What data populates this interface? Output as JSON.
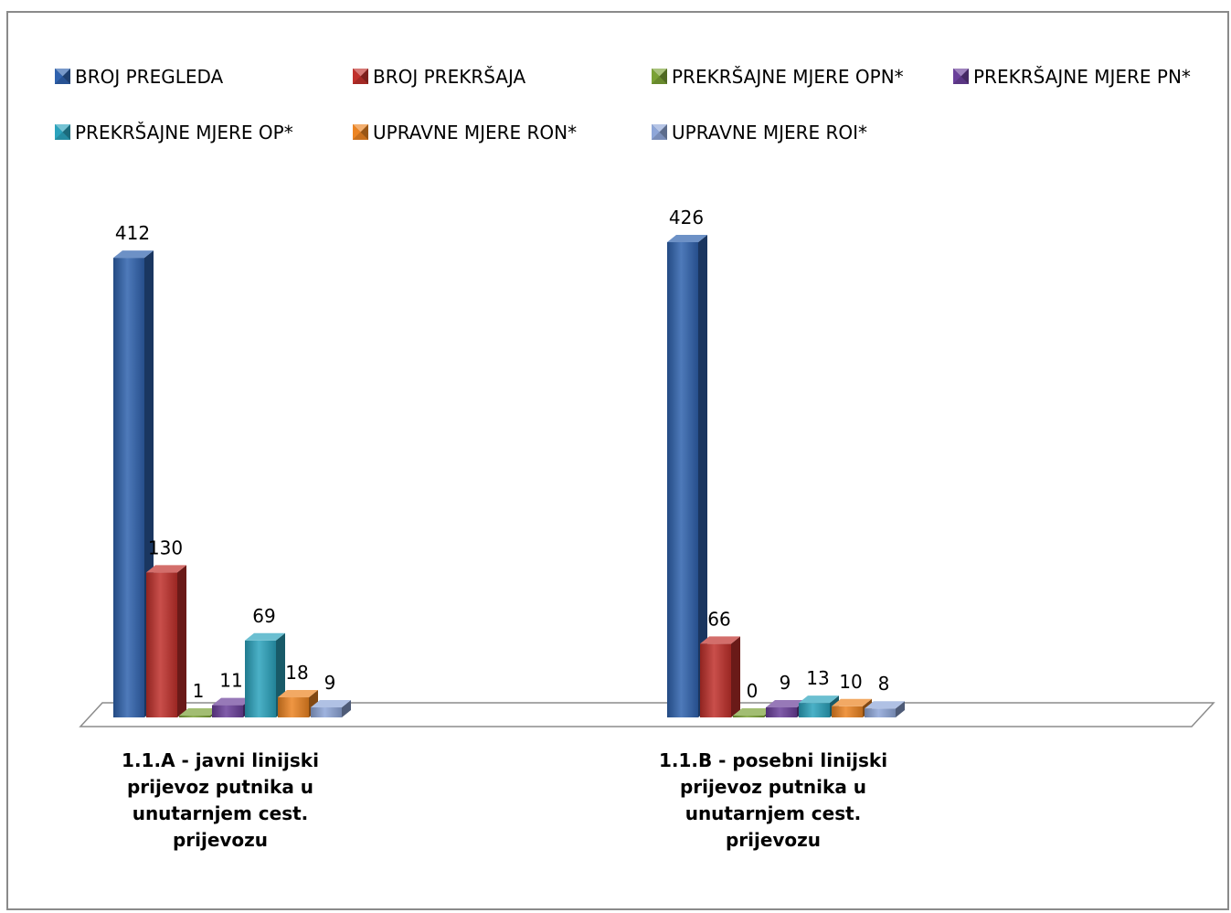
{
  "chart_data": {
    "type": "bar",
    "title": "",
    "xlabel": "",
    "ylabel": "",
    "grid": false,
    "legend_position": "top",
    "ylim": [
      0,
      426
    ],
    "categories": [
      [
        "1.1.A - javni linijski",
        "prijevoz putnika u",
        "unutarnjem cest.",
        "prijevozu"
      ],
      [
        "1.1.B - posebni linijski",
        "prijevoz putnika u",
        "unutarnjem cest.",
        "prijevozu"
      ]
    ],
    "series": [
      {
        "name": "BROJ PREGLEDA",
        "color": "#2f62ae",
        "values": [
          412,
          426
        ]
      },
      {
        "name": "BROJ PREKRŠAJA",
        "color": "#c0302b",
        "values": [
          130,
          66
        ]
      },
      {
        "name": "PREKRŠAJNE MJERE OPN*",
        "color": "#7aa135",
        "values": [
          1,
          0
        ]
      },
      {
        "name": "PREKRŠAJNE MJERE PN*",
        "color": "#6a3f9a",
        "values": [
          11,
          9
        ]
      },
      {
        "name": "PREKRŠAJNE MJERE OP*",
        "color": "#2ba3bd",
        "values": [
          69,
          13
        ]
      },
      {
        "name": "UPRAVNE MJERE RON*",
        "color": "#ec8422",
        "values": [
          18,
          10
        ]
      },
      {
        "name": "UPRAVNE MJERE ROI*",
        "color": "#8ea6d8",
        "values": [
          9,
          8
        ]
      }
    ]
  }
}
